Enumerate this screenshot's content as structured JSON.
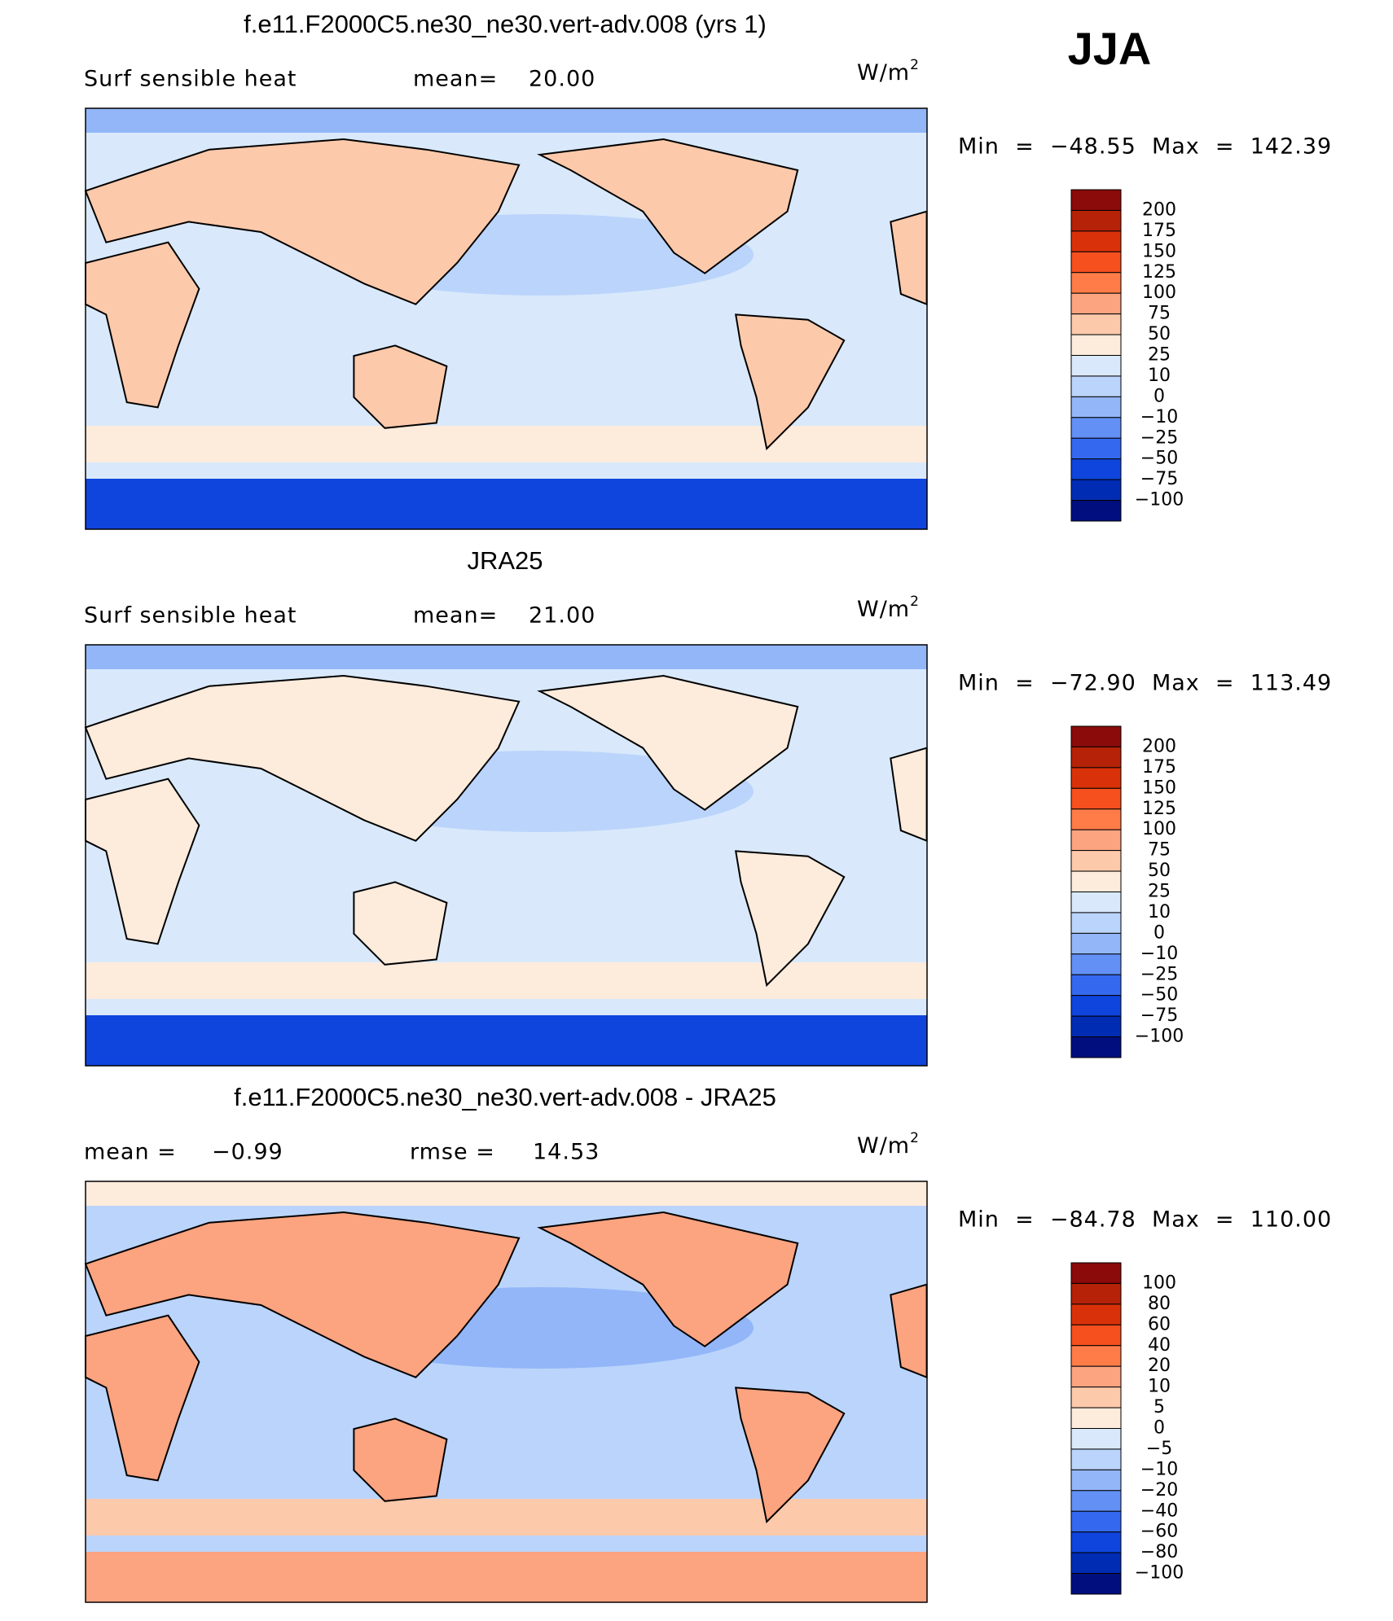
{
  "header": {
    "season": "JJA"
  },
  "panels": [
    {
      "title": "f.e11.F2000C5.ne30_ne30.vert-adv.008 (yrs 1)",
      "left_label": "Surf sensible heat",
      "stat1_label": "mean=",
      "stat1_value": "20.00",
      "units": "W/m",
      "units_sup": "2",
      "range_text": "Min  =  −48.55  Max  =  142.39",
      "colorbar": {
        "labels": [
          "200",
          "175",
          "150",
          "125",
          "100",
          "75",
          "50",
          "25",
          "10",
          "0",
          "−10",
          "−25",
          "−50",
          "−75",
          "−100"
        ],
        "colors": [
          "#8b0a0a",
          "#b52208",
          "#d9320a",
          "#f5501e",
          "#ff7c48",
          "#fca380",
          "#fdc9ab",
          "#fdebdc",
          "#d9e9fb",
          "#bbd4fb",
          "#92b6f8",
          "#6390f5",
          "#3468ef",
          "#0f44dd",
          "#002cb4",
          "#000e7e"
        ]
      }
    },
    {
      "title": "JRA25",
      "left_label": "Surf sensible heat",
      "stat1_label": "mean=",
      "stat1_value": "21.00",
      "units": "W/m",
      "units_sup": "2",
      "range_text": "Min  =  −72.90  Max  =  113.49",
      "colorbar": {
        "labels": [
          "200",
          "175",
          "150",
          "125",
          "100",
          "75",
          "50",
          "25",
          "10",
          "0",
          "−10",
          "−25",
          "−50",
          "−75",
          "−100"
        ],
        "colors": [
          "#8b0a0a",
          "#b52208",
          "#d9320a",
          "#f5501e",
          "#ff7c48",
          "#fca380",
          "#fdc9ab",
          "#fdebdc",
          "#d9e9fb",
          "#bbd4fb",
          "#92b6f8",
          "#6390f5",
          "#3468ef",
          "#0f44dd",
          "#002cb4",
          "#000e7e"
        ]
      }
    },
    {
      "title": "f.e11.F2000C5.ne30_ne30.vert-adv.008 - JRA25",
      "stat1_label": "mean =",
      "stat1_value": "−0.99",
      "stat2_label": "rmse =",
      "stat2_value": "14.53",
      "units": "W/m",
      "units_sup": "2",
      "range_text": "Min  =  −84.78  Max  =  110.00",
      "colorbar": {
        "labels": [
          "100",
          "80",
          "60",
          "40",
          "20",
          "10",
          "5",
          "0",
          "−5",
          "−10",
          "−20",
          "−40",
          "−60",
          "−80",
          "−100"
        ],
        "colors": [
          "#8b0a0a",
          "#b52208",
          "#d9320a",
          "#f5501e",
          "#ff7c48",
          "#fca380",
          "#fdc9ab",
          "#fdebdc",
          "#d9e9fb",
          "#bbd4fb",
          "#92b6f8",
          "#6390f5",
          "#3468ef",
          "#0f44dd",
          "#002cb4",
          "#000e7e"
        ]
      }
    }
  ]
}
